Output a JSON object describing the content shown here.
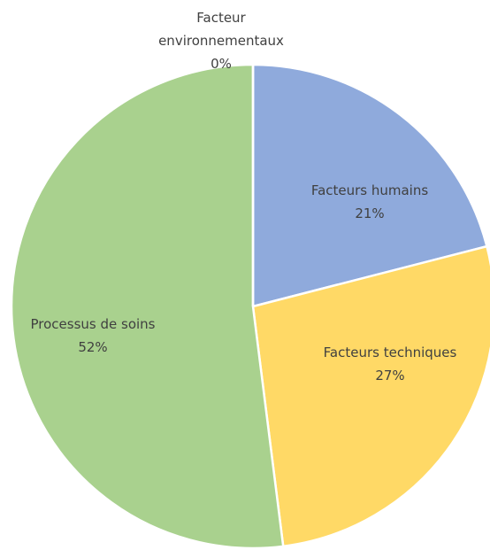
{
  "chart_data": {
    "type": "pie",
    "categories": [
      "Facteurs humains",
      "Facteurs techniques",
      "Processus de soins",
      "Facteur environnementaux"
    ],
    "values": [
      21,
      27,
      52,
      0
    ],
    "value_labels": [
      "21%",
      "27%",
      "52%",
      "0%"
    ],
    "colors": [
      "#8faadc",
      "#ffd966",
      "#a9d18e",
      "#f4b183"
    ]
  }
}
